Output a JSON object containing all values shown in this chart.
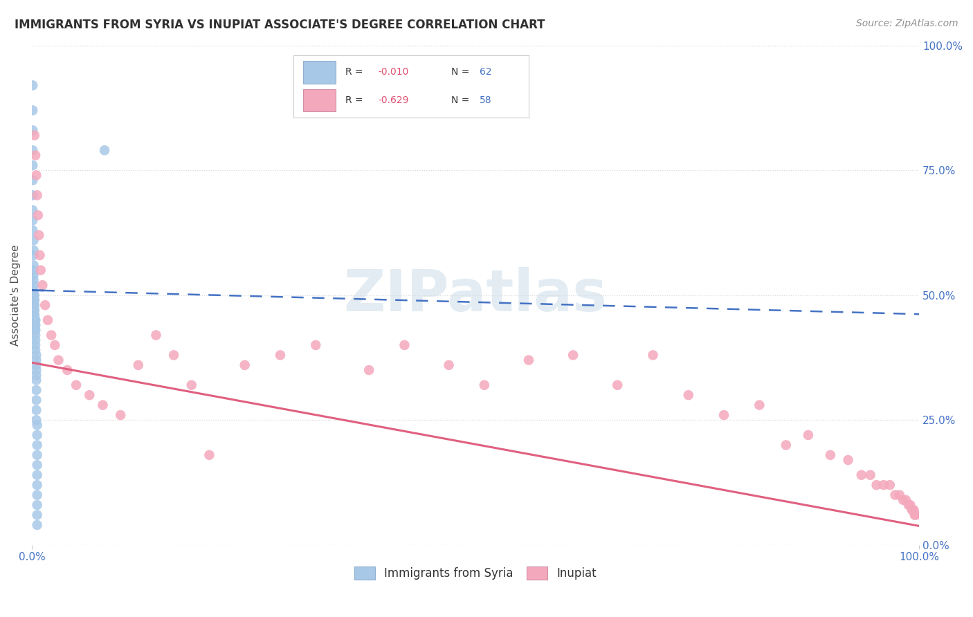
{
  "title": "IMMIGRANTS FROM SYRIA VS INUPIAT ASSOCIATE'S DEGREE CORRELATION CHART",
  "source": "Source: ZipAtlas.com",
  "ylabel": "Associate's Degree",
  "legend_labels": [
    "Immigrants from Syria",
    "Inupiat"
  ],
  "legend_r": [
    "R = -0.010",
    "R = -0.629"
  ],
  "legend_n": [
    "N = 62",
    "N = 58"
  ],
  "blue_color": "#a8c8e8",
  "pink_color": "#f4a8bc",
  "blue_line_color": "#4472c4",
  "pink_line_color": "#e06080",
  "watermark": "ZIPatlas",
  "xlim": [
    0.0,
    1.0
  ],
  "ylim": [
    0.0,
    1.0
  ],
  "yticks": [
    0.0,
    0.25,
    0.5,
    0.75,
    1.0
  ],
  "ytick_labels": [
    "0.0%",
    "25.0%",
    "50.0%",
    "75.0%",
    "100.0%"
  ],
  "grid_color": "#d8d8d8",
  "bg_color": "#ffffff",
  "title_color": "#303030",
  "tick_color": "#4472c4",
  "blue_x": [
    0.001,
    0.001,
    0.001,
    0.001,
    0.001,
    0.001,
    0.001,
    0.001,
    0.001,
    0.001,
    0.002,
    0.002,
    0.002,
    0.002,
    0.002,
    0.002,
    0.002,
    0.002,
    0.002,
    0.002,
    0.003,
    0.003,
    0.003,
    0.003,
    0.003,
    0.003,
    0.003,
    0.003,
    0.003,
    0.003,
    0.004,
    0.004,
    0.004,
    0.004,
    0.004,
    0.004,
    0.004,
    0.004,
    0.004,
    0.004,
    0.005,
    0.005,
    0.005,
    0.005,
    0.005,
    0.005,
    0.005,
    0.005,
    0.005,
    0.005,
    0.006,
    0.006,
    0.006,
    0.006,
    0.006,
    0.006,
    0.006,
    0.006,
    0.006,
    0.006,
    0.082,
    0.006
  ],
  "blue_y": [
    0.92,
    0.87,
    0.83,
    0.79,
    0.76,
    0.73,
    0.7,
    0.67,
    0.65,
    0.63,
    0.61,
    0.59,
    0.58,
    0.56,
    0.55,
    0.54,
    0.53,
    0.52,
    0.51,
    0.5,
    0.5,
    0.49,
    0.49,
    0.48,
    0.48,
    0.47,
    0.47,
    0.46,
    0.46,
    0.46,
    0.45,
    0.45,
    0.44,
    0.44,
    0.43,
    0.43,
    0.42,
    0.41,
    0.4,
    0.39,
    0.38,
    0.37,
    0.36,
    0.35,
    0.34,
    0.33,
    0.31,
    0.29,
    0.27,
    0.25,
    0.24,
    0.22,
    0.2,
    0.18,
    0.16,
    0.14,
    0.12,
    0.1,
    0.08,
    0.06,
    0.79,
    0.04
  ],
  "pink_x": [
    0.003,
    0.004,
    0.005,
    0.006,
    0.007,
    0.008,
    0.009,
    0.01,
    0.012,
    0.015,
    0.018,
    0.022,
    0.026,
    0.03,
    0.04,
    0.05,
    0.065,
    0.08,
    0.1,
    0.12,
    0.14,
    0.16,
    0.18,
    0.2,
    0.24,
    0.28,
    0.32,
    0.38,
    0.42,
    0.47,
    0.51,
    0.56,
    0.61,
    0.66,
    0.7,
    0.74,
    0.78,
    0.82,
    0.85,
    0.875,
    0.9,
    0.92,
    0.935,
    0.945,
    0.952,
    0.96,
    0.967,
    0.973,
    0.978,
    0.982,
    0.985,
    0.988,
    0.99,
    0.992,
    0.993,
    0.994,
    0.995,
    0.996
  ],
  "pink_y": [
    0.82,
    0.78,
    0.74,
    0.7,
    0.66,
    0.62,
    0.58,
    0.55,
    0.52,
    0.48,
    0.45,
    0.42,
    0.4,
    0.37,
    0.35,
    0.32,
    0.3,
    0.28,
    0.26,
    0.36,
    0.42,
    0.38,
    0.32,
    0.18,
    0.36,
    0.38,
    0.4,
    0.35,
    0.4,
    0.36,
    0.32,
    0.37,
    0.38,
    0.32,
    0.38,
    0.3,
    0.26,
    0.28,
    0.2,
    0.22,
    0.18,
    0.17,
    0.14,
    0.14,
    0.12,
    0.12,
    0.12,
    0.1,
    0.1,
    0.09,
    0.09,
    0.08,
    0.08,
    0.07,
    0.07,
    0.07,
    0.06,
    0.06
  ],
  "blue_line_y_start": 0.51,
  "blue_line_y_solid_end": 0.509,
  "blue_line_x_solid_end": 0.012,
  "blue_line_y_end": 0.462,
  "pink_line_y_start": 0.365,
  "pink_line_y_end": 0.038
}
